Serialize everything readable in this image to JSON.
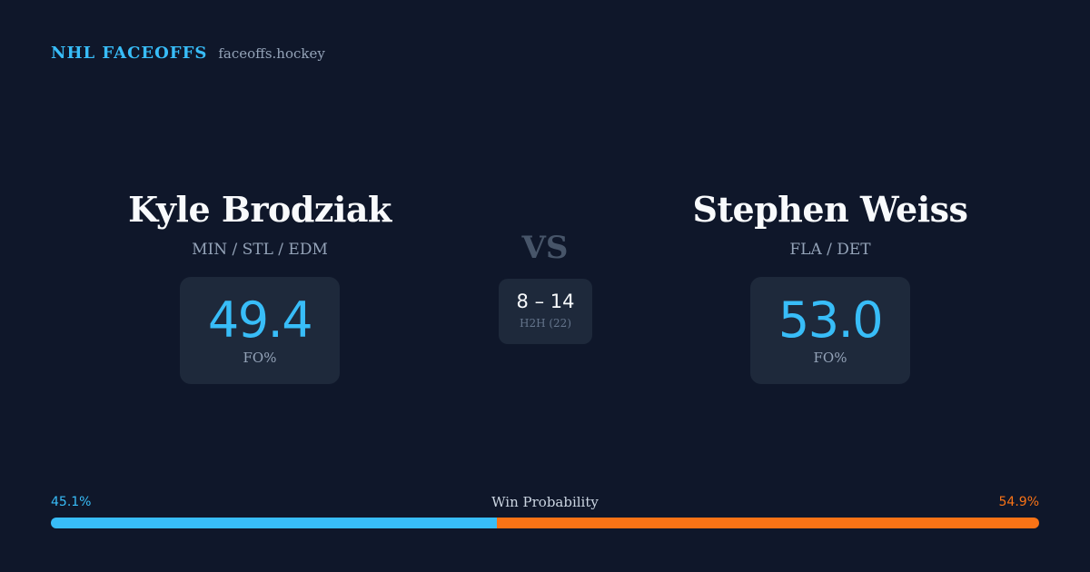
{
  "brand": {
    "name": "NHL FACEOFFS",
    "domain": "faceoffs.hockey"
  },
  "players": [
    {
      "name": "Kyle Brodziak",
      "teams": "MIN / STL / EDM",
      "fo_pct": "49.4",
      "fo_label": "FO%"
    },
    {
      "name": "Stephen Weiss",
      "teams": "FLA / DET",
      "fo_pct": "53.0",
      "fo_label": "FO%"
    }
  ],
  "versus": {
    "label": "VS",
    "h2h_score": "8 – 14",
    "h2h_label": "H2H (22)"
  },
  "win_probability": {
    "title": "Win Probability",
    "left_label": "45.1%",
    "right_label": "54.9%",
    "left_value": 45.1,
    "right_value": 54.9
  },
  "colors": {
    "background": "#0f172a",
    "card": "#1e293b",
    "accent_left": "#38bdf8",
    "accent_right": "#f97316",
    "muted": "#94a3b8"
  }
}
